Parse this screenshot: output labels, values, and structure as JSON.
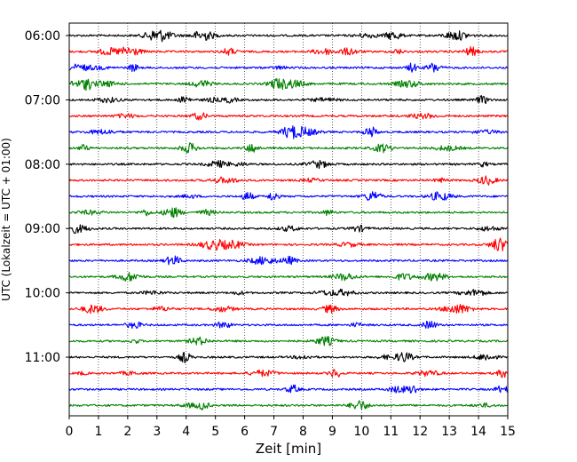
{
  "chart_data": {
    "type": "line",
    "title": "",
    "xlabel": "Zeit  [min]",
    "ylabel": "UTC (Lokalzeit = UTC + 01:00)",
    "xlim": [
      0,
      15
    ],
    "x_ticks": [
      "0",
      "1",
      "2",
      "3",
      "4",
      "5",
      "6",
      "7",
      "8",
      "9",
      "10",
      "11",
      "12",
      "13",
      "14",
      "15"
    ],
    "y_tick_labels": [
      "06:00",
      "07:00",
      "08:00",
      "09:00",
      "10:00",
      "11:00"
    ],
    "y_tick_traces": [
      0,
      4,
      8,
      12,
      16,
      20
    ],
    "grid": "vertical dotted",
    "trace_colors": [
      "#000000",
      "#ff0000",
      "#0000ff",
      "#008000"
    ],
    "traces": [
      {
        "start": "06:00"
      },
      {
        "start": "06:15"
      },
      {
        "start": "06:30"
      },
      {
        "start": "06:45"
      },
      {
        "start": "07:00"
      },
      {
        "start": "07:15"
      },
      {
        "start": "07:30"
      },
      {
        "start": "07:45"
      },
      {
        "start": "08:00"
      },
      {
        "start": "08:15"
      },
      {
        "start": "08:30"
      },
      {
        "start": "08:45"
      },
      {
        "start": "09:00"
      },
      {
        "start": "09:15"
      },
      {
        "start": "09:30"
      },
      {
        "start": "09:45"
      },
      {
        "start": "10:00"
      },
      {
        "start": "10:15"
      },
      {
        "start": "10:30"
      },
      {
        "start": "10:45"
      },
      {
        "start": "11:00"
      },
      {
        "start": "11:15"
      },
      {
        "start": "11:30"
      },
      {
        "start": "11:45"
      }
    ]
  }
}
